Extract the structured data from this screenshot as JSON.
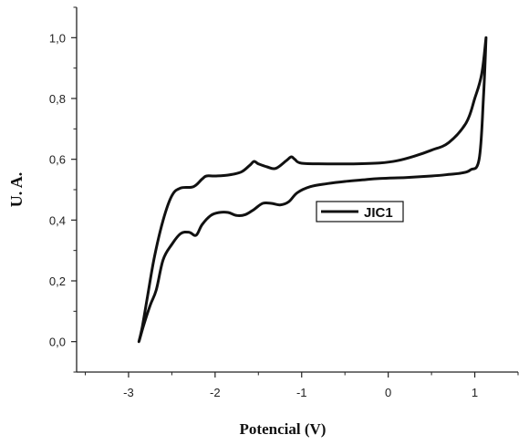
{
  "chart_data": {
    "type": "line",
    "title": "",
    "xlabel": "Potencial (V)",
    "ylabel": "U. A.",
    "xlim": [
      -3.6,
      1.5
    ],
    "ylim": [
      -0.1,
      1.1
    ],
    "x_ticks": [
      -3,
      -2,
      -1,
      0,
      1
    ],
    "x_tick_labels": [
      "-3",
      "-2",
      "-1",
      "0",
      "1"
    ],
    "y_ticks": [
      0.0,
      0.2,
      0.4,
      0.6,
      0.8,
      1.0
    ],
    "y_tick_labels": [
      "0,0",
      "0,2",
      "0,4",
      "0,6",
      "0,8",
      "1,0"
    ],
    "grid": false,
    "legend_position": "center-right",
    "series": [
      {
        "name": "JIC1",
        "color": "#111111",
        "points": [
          [
            1.13,
            1.0
          ],
          [
            1.08,
            0.88
          ],
          [
            1.0,
            0.8
          ],
          [
            0.9,
            0.72
          ],
          [
            0.7,
            0.655
          ],
          [
            0.5,
            0.63
          ],
          [
            0.3,
            0.61
          ],
          [
            0.1,
            0.595
          ],
          [
            -0.1,
            0.588
          ],
          [
            -0.4,
            0.585
          ],
          [
            -0.7,
            0.585
          ],
          [
            -1.0,
            0.587
          ],
          [
            -1.08,
            0.6
          ],
          [
            -1.12,
            0.608
          ],
          [
            -1.18,
            0.595
          ],
          [
            -1.3,
            0.57
          ],
          [
            -1.4,
            0.575
          ],
          [
            -1.5,
            0.585
          ],
          [
            -1.55,
            0.593
          ],
          [
            -1.6,
            0.58
          ],
          [
            -1.7,
            0.558
          ],
          [
            -1.85,
            0.548
          ],
          [
            -2.0,
            0.545
          ],
          [
            -2.1,
            0.545
          ],
          [
            -2.15,
            0.535
          ],
          [
            -2.25,
            0.51
          ],
          [
            -2.4,
            0.505
          ],
          [
            -2.5,
            0.48
          ],
          [
            -2.6,
            0.4
          ],
          [
            -2.7,
            0.28
          ],
          [
            -2.78,
            0.15
          ],
          [
            -2.84,
            0.05
          ],
          [
            -2.88,
            0.0
          ],
          [
            -2.83,
            0.05
          ],
          [
            -2.75,
            0.12
          ],
          [
            -2.68,
            0.17
          ],
          [
            -2.6,
            0.27
          ],
          [
            -2.5,
            0.32
          ],
          [
            -2.4,
            0.355
          ],
          [
            -2.3,
            0.36
          ],
          [
            -2.22,
            0.35
          ],
          [
            -2.15,
            0.385
          ],
          [
            -2.05,
            0.415
          ],
          [
            -1.95,
            0.425
          ],
          [
            -1.85,
            0.425
          ],
          [
            -1.75,
            0.415
          ],
          [
            -1.65,
            0.418
          ],
          [
            -1.55,
            0.435
          ],
          [
            -1.45,
            0.455
          ],
          [
            -1.35,
            0.455
          ],
          [
            -1.25,
            0.45
          ],
          [
            -1.15,
            0.46
          ],
          [
            -1.05,
            0.49
          ],
          [
            -0.9,
            0.51
          ],
          [
            -0.7,
            0.52
          ],
          [
            -0.5,
            0.527
          ],
          [
            -0.3,
            0.532
          ],
          [
            -0.1,
            0.537
          ],
          [
            0.2,
            0.54
          ],
          [
            0.5,
            0.545
          ],
          [
            0.7,
            0.55
          ],
          [
            0.85,
            0.555
          ],
          [
            0.95,
            0.565
          ],
          [
            1.05,
            0.6
          ],
          [
            1.1,
            0.8
          ],
          [
            1.13,
            1.0
          ]
        ]
      }
    ]
  }
}
